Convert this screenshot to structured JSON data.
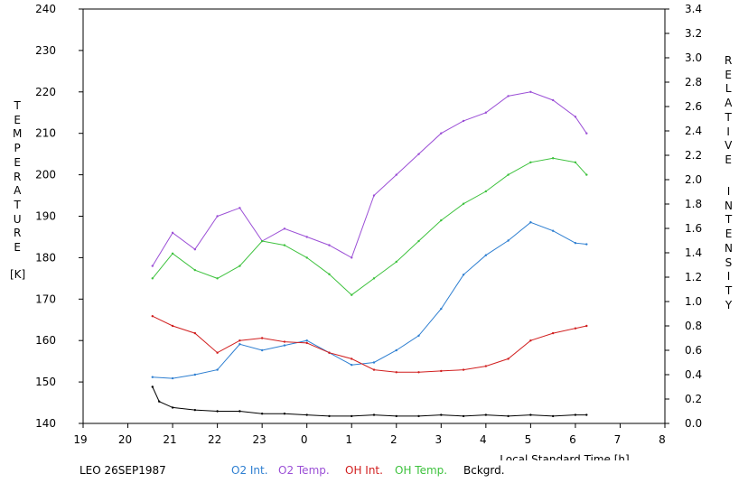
{
  "chart_data": {
    "type": "line",
    "xlabel": "Local Standard Time [h]",
    "x_tick_labels": [
      "19",
      "20",
      "21",
      "22",
      "23",
      "0",
      "1",
      "2",
      "3",
      "4",
      "5",
      "6",
      "7",
      "8"
    ],
    "left_axis": {
      "label": "TEMPERATURE",
      "unit": "[K]",
      "ylim": [
        140,
        240
      ],
      "tick_labels": [
        "140",
        "150",
        "160",
        "170",
        "180",
        "190",
        "200",
        "210",
        "220",
        "230",
        "240"
      ]
    },
    "right_axis": {
      "label_line1": "RELATIVE",
      "label_line2": "INTENSITY",
      "ylim": [
        0.0,
        3.4
      ],
      "tick_labels": [
        "0.0",
        "0.2",
        "0.4",
        "0.6",
        "0.8",
        "1.0",
        "1.2",
        "1.4",
        "1.6",
        "1.8",
        "2.0",
        "2.2",
        "2.4",
        "2.6",
        "2.8",
        "3.0",
        "3.2",
        "3.4"
      ]
    },
    "x_range_hours": [
      19,
      8
    ],
    "series": [
      {
        "name": "O2 Int.",
        "axis": "right",
        "color": "#2e7fd1",
        "x": [
          20.55,
          21.0,
          21.5,
          22.0,
          22.5,
          23.0,
          23.5,
          0.0,
          0.5,
          1.0,
          1.5,
          2.0,
          2.5,
          3.0,
          3.5,
          4.0,
          4.5,
          5.0,
          5.5,
          6.0,
          6.25
        ],
        "y": [
          0.38,
          0.37,
          0.4,
          0.44,
          0.65,
          0.6,
          0.64,
          0.68,
          0.58,
          0.48,
          0.5,
          0.6,
          0.72,
          0.94,
          1.22,
          1.38,
          1.5,
          1.65,
          1.58,
          1.48,
          1.47
        ]
      },
      {
        "name": "O2 Temp.",
        "axis": "left",
        "color": "#9b4fd6",
        "x": [
          20.55,
          21.0,
          21.5,
          22.0,
          22.5,
          23.0,
          23.5,
          0.0,
          0.5,
          1.0,
          1.5,
          2.0,
          2.5,
          3.0,
          3.5,
          4.0,
          4.5,
          5.0,
          5.5,
          6.0,
          6.25
        ],
        "y": [
          178,
          186,
          182,
          190,
          192,
          184,
          187,
          185,
          183,
          180,
          195,
          200,
          205,
          210,
          213,
          215,
          219,
          220,
          218,
          214,
          210
        ]
      },
      {
        "name": "OH Int.",
        "axis": "right",
        "color": "#d11f1f",
        "x": [
          20.55,
          21.0,
          21.5,
          22.0,
          22.5,
          23.0,
          23.5,
          0.0,
          0.5,
          1.0,
          1.5,
          2.0,
          2.5,
          3.0,
          3.5,
          4.0,
          4.5,
          5.0,
          5.5,
          6.0,
          6.25
        ],
        "y": [
          0.88,
          0.8,
          0.74,
          0.58,
          0.68,
          0.7,
          0.67,
          0.66,
          0.58,
          0.53,
          0.44,
          0.42,
          0.42,
          0.43,
          0.44,
          0.47,
          0.53,
          0.68,
          0.74,
          0.78,
          0.8
        ]
      },
      {
        "name": "OH Temp.",
        "axis": "left",
        "color": "#3ec23e",
        "x": [
          20.55,
          21.0,
          21.5,
          22.0,
          22.5,
          23.0,
          23.5,
          0.0,
          0.5,
          1.0,
          1.5,
          2.0,
          2.5,
          3.0,
          3.5,
          4.0,
          4.5,
          5.0,
          5.5,
          6.0,
          6.25
        ],
        "y": [
          175,
          181,
          177,
          175,
          178,
          184,
          183,
          180,
          176,
          171,
          175,
          179,
          184,
          189,
          193,
          196,
          200,
          203,
          204,
          203,
          200
        ]
      },
      {
        "name": "Bckgrd.",
        "axis": "right",
        "color": "#000000",
        "x": [
          20.55,
          20.7,
          21.0,
          21.5,
          22.0,
          22.5,
          23.0,
          23.5,
          0.0,
          0.5,
          1.0,
          1.5,
          2.0,
          2.5,
          3.0,
          3.5,
          4.0,
          4.5,
          5.0,
          5.5,
          6.0,
          6.25
        ],
        "y": [
          0.3,
          0.18,
          0.13,
          0.11,
          0.1,
          0.1,
          0.08,
          0.08,
          0.07,
          0.06,
          0.06,
          0.07,
          0.06,
          0.06,
          0.07,
          0.06,
          0.07,
          0.06,
          0.07,
          0.06,
          0.07,
          0.07
        ]
      }
    ],
    "footer_label": "LEO 26SEP1987",
    "grid": false,
    "legend_position": "bottom"
  }
}
